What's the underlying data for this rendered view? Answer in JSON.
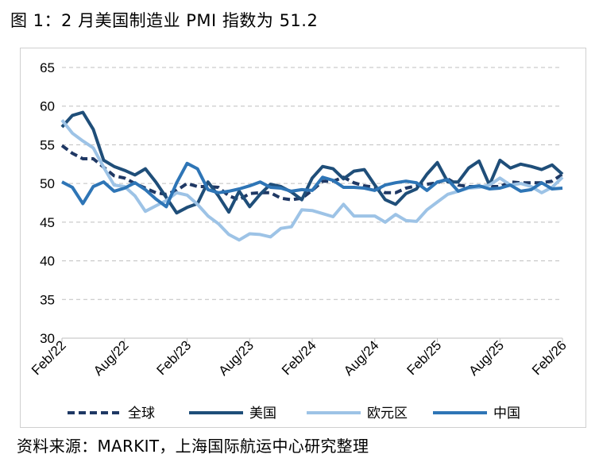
{
  "title": "图 1：2 月美国制造业 PMI 指数为 51.2",
  "source": "资料来源：MARKIT，上海国际航运中心研究整理",
  "chart_data": {
    "type": "line",
    "ylim": [
      30,
      65
    ],
    "yticks": [
      30,
      35,
      40,
      45,
      50,
      55,
      60,
      65
    ],
    "grid": "horizontal dashed",
    "legend_position": "bottom",
    "x": [
      "Feb/22",
      "Mar/22",
      "Apr/22",
      "May/22",
      "Jun/22",
      "Jul/22",
      "Aug/22",
      "Sep/22",
      "Oct/22",
      "Nov/22",
      "Dec/22",
      "Jan/23",
      "Feb/23",
      "Mar/23",
      "Apr/23",
      "May/23",
      "Jun/23",
      "Jul/23",
      "Aug/23",
      "Sep/23",
      "Oct/23",
      "Nov/23",
      "Dec/23",
      "Jan/24",
      "Feb/24",
      "Mar/24",
      "Apr/24",
      "May/24",
      "Jun/24",
      "Jul/24",
      "Aug/24",
      "Sep/24",
      "Oct/24",
      "Nov/24",
      "Dec/24",
      "Jan/25",
      "Feb/25",
      "Mar/25",
      "Apr/25",
      "May/25",
      "Jun/25",
      "Jul/25",
      "Aug/25",
      "Sep/25",
      "Oct/25",
      "Nov/25",
      "Dec/25",
      "Jan/26",
      "Feb/26"
    ],
    "xtick_labels": [
      "Feb/22",
      "Aug/22",
      "Feb/23",
      "Aug/23",
      "Feb/24",
      "Aug/24",
      "Feb/25",
      "Aug/25",
      "Feb/26"
    ],
    "series": [
      {
        "name": "全球",
        "color": "#1f3864",
        "style": "dashed",
        "values": [
          54.9,
          53.9,
          53.2,
          53.2,
          52.1,
          51.0,
          50.7,
          50.0,
          49.4,
          48.8,
          48.6,
          49.1,
          50.0,
          49.6,
          49.6,
          49.5,
          48.4,
          47.9,
          48.7,
          48.8,
          48.8,
          48.1,
          47.9,
          48.1,
          49.1,
          50.3,
          50.3,
          50.8,
          50.1,
          49.7,
          49.5,
          48.8,
          48.8,
          49.4,
          49.7,
          49.9,
          50.1,
          50.6,
          49.8,
          49.6,
          49.6,
          49.6,
          49.6,
          50.2,
          50.1,
          50.1,
          50.1,
          50.3,
          51.2
        ]
      },
      {
        "name": "美国",
        "color": "#1f4e79",
        "style": "solid",
        "values": [
          57.3,
          58.8,
          59.2,
          57.0,
          53.0,
          52.2,
          51.7,
          51.1,
          51.9,
          50.2,
          48.2,
          46.2,
          46.9,
          47.4,
          50.2,
          48.4,
          46.3,
          49.0,
          47.0,
          48.6,
          49.9,
          49.6,
          48.9,
          47.9,
          50.7,
          52.2,
          51.9,
          50.6,
          51.6,
          51.8,
          49.8,
          47.9,
          47.3,
          48.7,
          49.3,
          51.2,
          52.7,
          50.2,
          50.2,
          52.0,
          52.9,
          49.8,
          53.0,
          52.0,
          52.5,
          52.2,
          51.8,
          52.4,
          51.2
        ]
      },
      {
        "name": "欧元区",
        "color": "#9dc3e6",
        "style": "solid",
        "values": [
          58.2,
          56.5,
          55.5,
          54.6,
          52.1,
          49.8,
          49.6,
          48.4,
          46.4,
          47.1,
          47.8,
          48.8,
          48.5,
          47.3,
          45.8,
          44.8,
          43.4,
          42.7,
          43.5,
          43.4,
          43.1,
          44.2,
          44.4,
          46.6,
          46.5,
          46.1,
          45.7,
          47.3,
          45.8,
          45.8,
          45.8,
          45.0,
          46.0,
          45.2,
          45.1,
          46.6,
          47.6,
          48.6,
          49.0,
          49.4,
          49.5,
          49.8,
          50.7,
          49.8,
          50.0,
          49.6,
          48.8,
          49.5,
          50.8
        ]
      },
      {
        "name": "中国",
        "color": "#2e75b6",
        "style": "solid",
        "values": [
          50.2,
          49.5,
          47.4,
          49.6,
          50.2,
          49.0,
          49.4,
          50.1,
          49.2,
          48.0,
          47.0,
          50.1,
          52.6,
          51.9,
          49.2,
          48.8,
          49.0,
          49.3,
          49.7,
          50.2,
          49.5,
          49.4,
          49.0,
          49.2,
          49.1,
          50.8,
          50.4,
          49.5,
          49.5,
          49.4,
          49.1,
          49.8,
          50.1,
          50.3,
          50.1,
          49.1,
          50.2,
          50.5,
          49.0,
          49.5,
          49.7,
          49.3,
          49.4,
          49.8,
          49.0,
          49.2,
          50.1,
          49.3,
          49.4
        ]
      }
    ]
  }
}
